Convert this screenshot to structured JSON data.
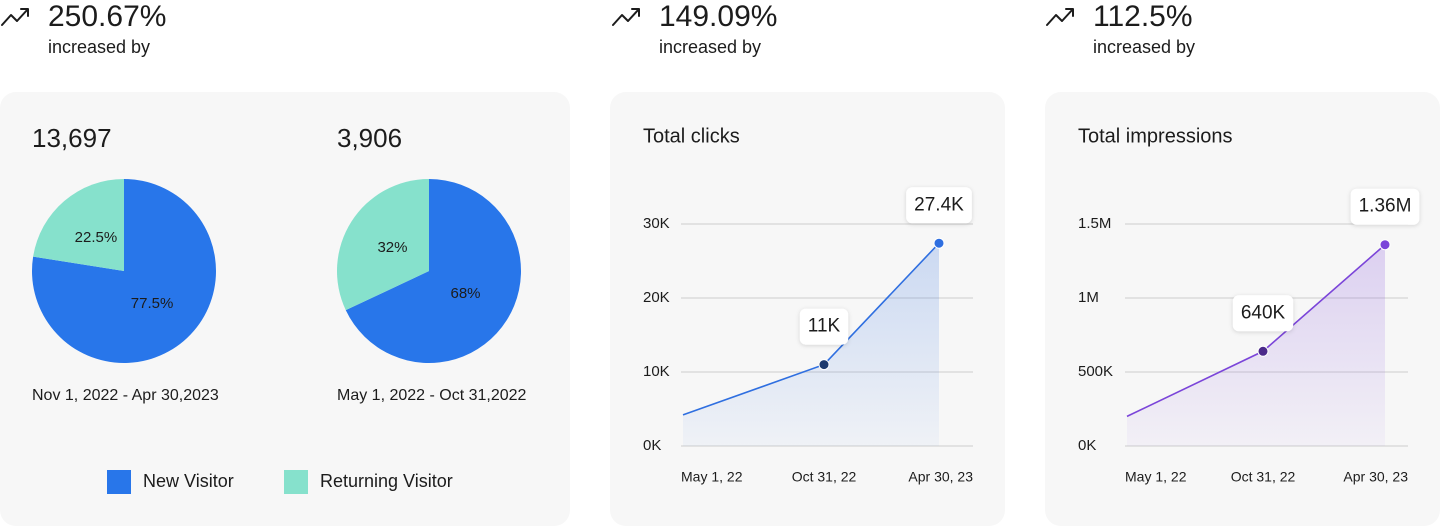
{
  "header": [
    {
      "change": "250.67%",
      "label": "increased by"
    },
    {
      "change": "149.09%",
      "label": "increased by"
    },
    {
      "change": "112.5%",
      "label": "increased by"
    }
  ],
  "chart_data": [
    {
      "type": "pie",
      "title": "13,697",
      "subtitle": "Nov 1, 2022 - Apr 30,2023",
      "categories": [
        "New Visitor",
        "Returning Visitor"
      ],
      "values": [
        77.5,
        22.5
      ],
      "value_labels": [
        "77.5%",
        "22.5%"
      ],
      "colors": [
        "#2876ea",
        "#86e1cc"
      ]
    },
    {
      "type": "pie",
      "title": "3,906",
      "subtitle": "May 1, 2022 - Oct 31,2022",
      "values": [
        68,
        32
      ],
      "value_labels": [
        "68%",
        "32%"
      ],
      "colors": [
        "#2876ea",
        "#86e1cc"
      ]
    },
    {
      "type": "line",
      "title": "Total clicks",
      "categories": [
        "May 1, 22",
        "Oct 31, 22",
        "Apr 30, 23"
      ],
      "values": [
        4200,
        11000,
        27400
      ],
      "value_labels": [
        null,
        "11K",
        "27.4K"
      ],
      "color": "#2f6fe0",
      "point_colors": [
        null,
        "#1e3a6e",
        "#2f6fe0"
      ],
      "ylim": [
        0,
        30000
      ],
      "yticks": [
        {
          "value": 0,
          "label": "0K"
        },
        {
          "value": 10000,
          "label": "10K"
        },
        {
          "value": 20000,
          "label": "20K"
        },
        {
          "value": 30000,
          "label": "30K"
        }
      ],
      "grid": true
    },
    {
      "type": "line",
      "title": "Total impressions",
      "categories": [
        "May 1, 22",
        "Oct 31, 22",
        "Apr 30, 23"
      ],
      "values": [
        200000,
        640000,
        1360000
      ],
      "value_labels": [
        null,
        "640K",
        "1.36M"
      ],
      "color": "#7b45d9",
      "point_colors": [
        null,
        "#4b2a8a",
        "#7b45d9"
      ],
      "ylim": [
        0,
        1500000
      ],
      "yticks": [
        {
          "value": 0,
          "label": "0K"
        },
        {
          "value": 500000,
          "label": "500K"
        },
        {
          "value": 1000000,
          "label": "1M"
        },
        {
          "value": 1500000,
          "label": "1.5M"
        }
      ],
      "grid": true
    }
  ]
}
